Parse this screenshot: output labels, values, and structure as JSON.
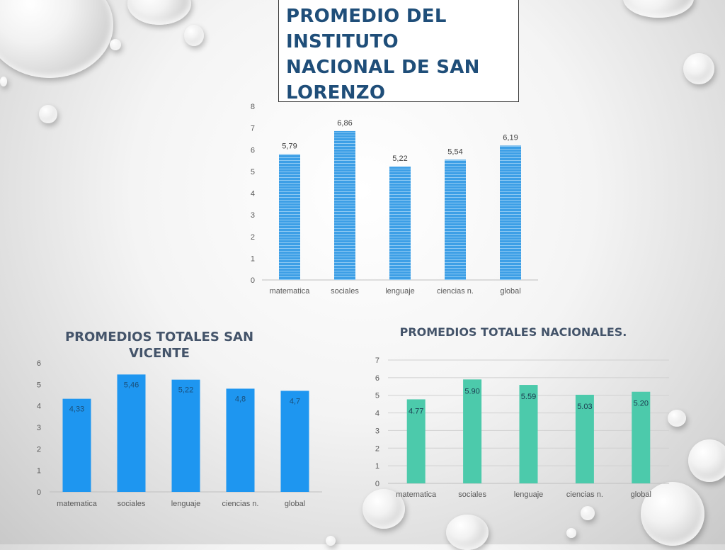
{
  "slide_title": "PROMEDIO DEL INSTITUTO NACIONAL DE SAN LORENZO",
  "colors": {
    "top_bar": "#3d9fe6",
    "left_bar": "#1e96f0",
    "right_bar": "#4ccaab",
    "title_blue": "#1f4e79",
    "chart_title": "#44546a"
  },
  "chart_data": [
    {
      "type": "bar",
      "title": "",
      "categories": [
        "matematica",
        "sociales",
        "lenguaje",
        "ciencias n.",
        "global"
      ],
      "values": [
        5.79,
        6.86,
        5.22,
        5.54,
        6.19
      ],
      "value_labels": [
        "5,79",
        "6,86",
        "5,22",
        "5,54",
        "6,19"
      ],
      "ylim": [
        0,
        8
      ],
      "yticks": [
        "0",
        "1",
        "2",
        "3",
        "4",
        "5",
        "6",
        "7",
        "8"
      ],
      "grid": false
    },
    {
      "type": "bar",
      "title": "PROMEDIOS TOTALES SAN VICENTE",
      "categories": [
        "matematica",
        "sociales",
        "lenguaje",
        "ciencias n.",
        "global"
      ],
      "values": [
        4.33,
        5.46,
        5.22,
        4.8,
        4.7
      ],
      "value_labels": [
        "4,33",
        "5,46",
        "5,22",
        "4,8",
        "4,7"
      ],
      "ylim": [
        0,
        6
      ],
      "yticks": [
        "0",
        "1",
        "2",
        "3",
        "4",
        "5",
        "6"
      ],
      "grid": false
    },
    {
      "type": "bar",
      "title": "PROMEDIOS TOTALES NACIONALES.",
      "categories": [
        "matematica",
        "sociales",
        "lenguaje",
        "ciencias n.",
        "global"
      ],
      "values": [
        4.77,
        5.9,
        5.59,
        5.03,
        5.2
      ],
      "value_labels": [
        "4.77",
        "5.90",
        "5.59",
        "5.03",
        "5.20"
      ],
      "ylim": [
        0,
        7
      ],
      "yticks": [
        "0",
        "1",
        "2",
        "3",
        "4",
        "5",
        "6",
        "7"
      ],
      "grid": true
    }
  ]
}
